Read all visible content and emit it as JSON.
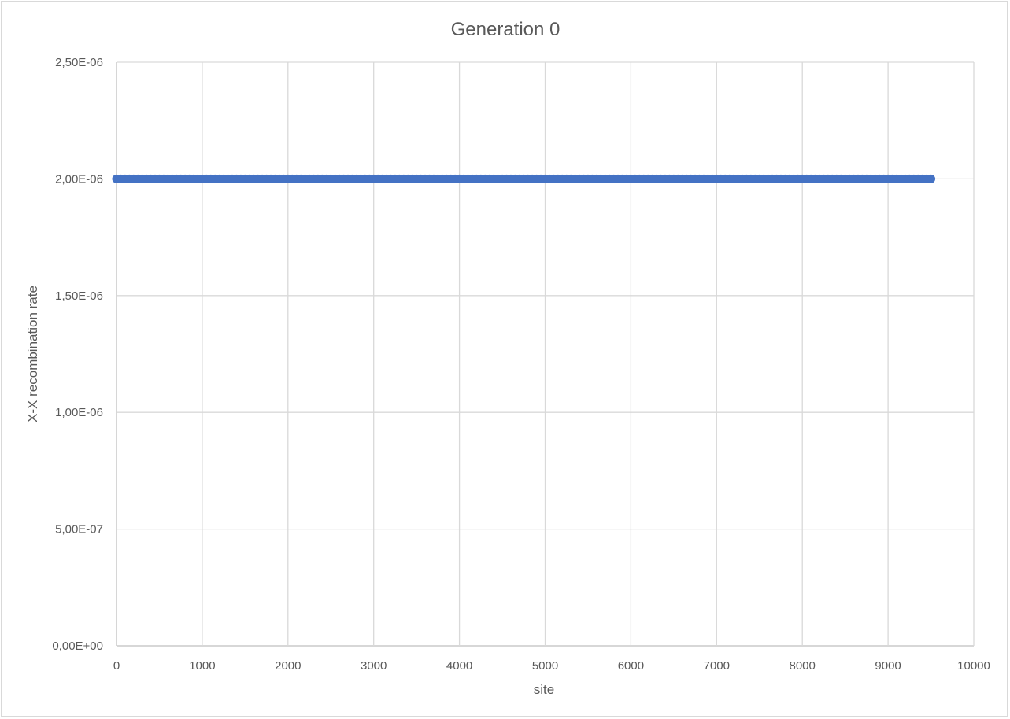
{
  "chart_data": {
    "type": "scatter",
    "title": "Generation 0",
    "xlabel": "site",
    "ylabel": "X-X recombination rate",
    "xlim": [
      0,
      10000
    ],
    "ylim": [
      0,
      2.5e-06
    ],
    "x_ticks": [
      "0",
      "1000",
      "2000",
      "3000",
      "4000",
      "5000",
      "6000",
      "7000",
      "8000",
      "9000",
      "10000"
    ],
    "y_ticks": [
      "0,00E+00",
      "5,00E-07",
      "1,00E-06",
      "1,50E-06",
      "2,00E-06",
      "2,50E-06"
    ],
    "grid": true,
    "legend": "none",
    "series": [
      {
        "x_start": 0,
        "x_end": 9500,
        "x_step": 50,
        "y": 2e-06,
        "color": "#4472c4"
      }
    ]
  }
}
